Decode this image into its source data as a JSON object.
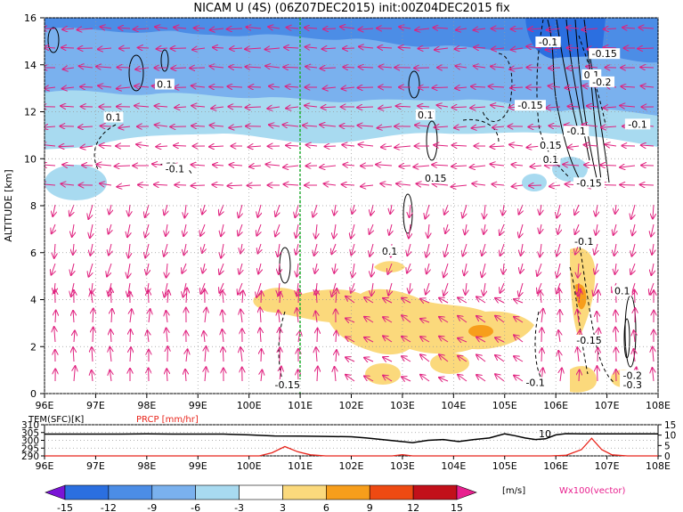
{
  "header": {
    "title": "NICAM  U  (4S)  (06Z07DEC2015)  init:00Z04DEC2015  fix"
  },
  "chart_data": [
    {
      "type": "heatmap",
      "title": "NICAM  U  (4S)  (06Z07DEC2015)  init:00Z04DEC2015  fix",
      "ylabel": "ALTITUDE [km]",
      "xlabel": "",
      "x_ticks": [
        "96E",
        "97E",
        "98E",
        "99E",
        "100E",
        "101E",
        "102E",
        "103E",
        "104E",
        "105E",
        "106E",
        "107E",
        "108E"
      ],
      "y_ticks": [
        "0",
        "2",
        "4",
        "6",
        "8",
        "10",
        "12",
        "14",
        "16"
      ],
      "xlim": [
        96,
        108
      ],
      "ylim": [
        0,
        16
      ],
      "contour_labels": [
        {
          "text": "-0.1",
          "x": 105.85,
          "y": 14.9
        },
        {
          "text": "-0.15",
          "x": 106.95,
          "y": 14.4
        },
        {
          "text": "0.1",
          "x": 106.7,
          "y": 13.5
        },
        {
          "text": "-0.2",
          "x": 106.9,
          "y": 13.2
        },
        {
          "text": "0.1",
          "x": 98.35,
          "y": 13.1
        },
        {
          "text": "0.1",
          "x": 97.35,
          "y": 11.7
        },
        {
          "text": "0.1",
          "x": 103.45,
          "y": 11.8
        },
        {
          "text": "-0.15",
          "x": 105.5,
          "y": 12.2
        },
        {
          "text": "-0.1",
          "x": 106.4,
          "y": 11.1
        },
        {
          "text": "-0.1",
          "x": 107.6,
          "y": 11.4
        },
        {
          "text": "0.15",
          "x": 105.9,
          "y": 10.5
        },
        {
          "text": "0.1",
          "x": 105.9,
          "y": 9.9
        },
        {
          "text": "-0.1",
          "x": 98.55,
          "y": 9.5
        },
        {
          "text": "0.15",
          "x": 103.65,
          "y": 9.1
        },
        {
          "text": "-0.15",
          "x": 106.65,
          "y": 8.9
        },
        {
          "text": "-0.1",
          "x": 106.55,
          "y": 6.4
        },
        {
          "text": "0.1",
          "x": 102.75,
          "y": 6.0
        },
        {
          "text": "0.1",
          "x": 107.3,
          "y": 4.3
        },
        {
          "text": "-0.15",
          "x": 106.65,
          "y": 2.2
        },
        {
          "text": "-0.15",
          "x": 100.75,
          "y": 0.3
        },
        {
          "text": "-0.1",
          "x": 105.6,
          "y": 0.4
        },
        {
          "text": "-0.2",
          "x": 107.5,
          "y": 0.7
        },
        {
          "text": "-0.3",
          "x": 107.5,
          "y": 0.3
        }
      ],
      "vline_x": 101.0
    },
    {
      "type": "line",
      "title": "",
      "labels": {
        "tem": "TEM(SFC)[K]",
        "prcp": "PRCP [mm/hr]"
      },
      "x_ticks": [
        "96E",
        "97E",
        "98E",
        "99E",
        "100E",
        "101E",
        "102E",
        "103E",
        "104E",
        "105E",
        "106E",
        "107E",
        "108E"
      ],
      "xlim": [
        96,
        108
      ],
      "left_ticks": [
        "310",
        "305",
        "300",
        "295",
        "290"
      ],
      "right_ticks": [
        "15",
        "10",
        "5",
        "0"
      ],
      "left_range": [
        290,
        310
      ],
      "right_range": [
        0,
        15
      ],
      "series": [
        {
          "name": "TEM(SFC)[K]",
          "color": "#000000",
          "x": [
            96,
            96.5,
            97,
            97.5,
            98,
            98.5,
            99,
            99.5,
            100,
            100.5,
            101,
            101.5,
            102,
            102.3,
            102.6,
            102.9,
            103.2,
            103.5,
            103.8,
            104.1,
            104.4,
            104.7,
            105.0,
            105.2,
            105.4,
            105.6,
            105.8,
            106.0,
            106.2,
            106.5,
            107,
            107.5,
            108
          ],
          "values": [
            304,
            304,
            304,
            304,
            304.2,
            304,
            304,
            304,
            303.5,
            302.8,
            302.7,
            302.5,
            302.3,
            301.5,
            300.5,
            299.5,
            298.5,
            300,
            300.5,
            299.2,
            300.5,
            301.5,
            304.2,
            303,
            301.5,
            300.5,
            301,
            303.5,
            304.3,
            304.2,
            304.2,
            304.2,
            304.2
          ]
        },
        {
          "name": "PRCP [mm/hr]",
          "color": "#e8241b",
          "x": [
            96,
            100.2,
            100.45,
            100.7,
            100.95,
            101.2,
            101.5,
            102.8,
            103.0,
            103.2,
            103.4,
            105.9,
            106.2,
            106.5,
            106.7,
            106.9,
            107.1,
            107.4,
            108
          ],
          "values": [
            0,
            0,
            1.5,
            4.5,
            2,
            0.5,
            0,
            0,
            0.6,
            0,
            0,
            0,
            0.3,
            3,
            8.5,
            3,
            0.5,
            0,
            0
          ]
        }
      ],
      "annotation": "10"
    }
  ],
  "colorbar": {
    "ticks": [
      "-15",
      "-12",
      "-9",
      "-6",
      "-3",
      "3",
      "6",
      "9",
      "12",
      "15"
    ],
    "unit": "[m/s]",
    "colors": [
      "#7a14d6",
      "#2b6fe0",
      "#4c8de6",
      "#7ab1ee",
      "#a8daf0",
      "#ffffff",
      "#fbd97c",
      "#f79e1b",
      "#ee4a12",
      "#c2101a",
      "#e81f8e"
    ],
    "vector_label": "Wx100(vector)"
  }
}
